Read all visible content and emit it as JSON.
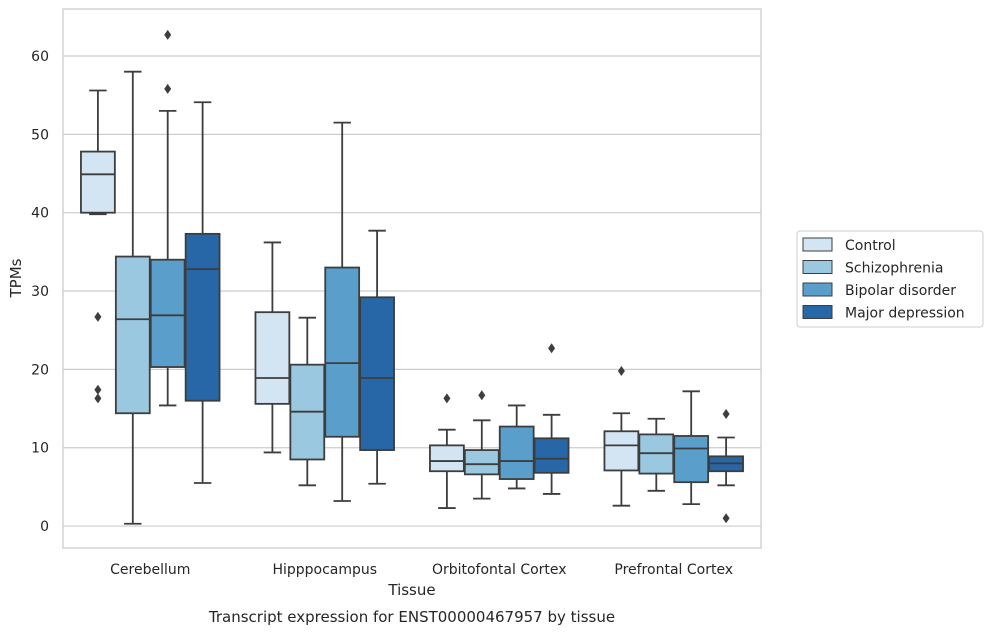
{
  "chart_data": {
    "type": "box",
    "caption": "Transcript expression for ENST00000467957 by tissue",
    "xlabel": "Tissue",
    "ylabel": "TPMs",
    "ylim": [
      -2.8,
      66
    ],
    "yticks": [
      0,
      10,
      20,
      30,
      40,
      50,
      60
    ],
    "grid": "horizontal",
    "legend_position": "right",
    "categories": [
      "Cerebellum",
      "Hipppocampus",
      "Orbitofontal Cortex",
      "Prefrontal Cortex"
    ],
    "series": [
      {
        "name": "Control",
        "color": "#d3e4f3",
        "boxes": [
          {
            "whisker_low": 39.8,
            "q1": 40.0,
            "median": 44.9,
            "q3": 47.8,
            "whisker_high": 55.6,
            "outliers": [
              26.7,
              17.4,
              16.3
            ]
          },
          {
            "whisker_low": 9.4,
            "q1": 15.6,
            "median": 18.9,
            "q3": 27.3,
            "whisker_high": 36.2,
            "outliers": []
          },
          {
            "whisker_low": 2.3,
            "q1": 7.0,
            "median": 8.3,
            "q3": 10.3,
            "whisker_high": 12.3,
            "outliers": [
              16.3
            ]
          },
          {
            "whisker_low": 2.6,
            "q1": 7.1,
            "median": 10.3,
            "q3": 12.1,
            "whisker_high": 14.4,
            "outliers": [
              19.8
            ]
          }
        ]
      },
      {
        "name": "Schizophrenia",
        "color": "#9ac8e0",
        "boxes": [
          {
            "whisker_low": 0.3,
            "q1": 14.4,
            "median": 26.4,
            "q3": 34.4,
            "whisker_high": 58.0,
            "outliers": []
          },
          {
            "whisker_low": 5.2,
            "q1": 8.5,
            "median": 14.6,
            "q3": 20.6,
            "whisker_high": 26.6,
            "outliers": []
          },
          {
            "whisker_low": 3.5,
            "q1": 6.6,
            "median": 7.9,
            "q3": 9.7,
            "whisker_high": 13.5,
            "outliers": [
              16.7
            ]
          },
          {
            "whisker_low": 4.5,
            "q1": 6.7,
            "median": 9.3,
            "q3": 11.7,
            "whisker_high": 13.7,
            "outliers": []
          }
        ]
      },
      {
        "name": "Bipolar disorder",
        "color": "#5a9fcb",
        "boxes": [
          {
            "whisker_low": 15.4,
            "q1": 20.3,
            "median": 26.9,
            "q3": 34.0,
            "whisker_high": 53.0,
            "outliers": [
              62.7,
              55.8
            ]
          },
          {
            "whisker_low": 3.2,
            "q1": 11.4,
            "median": 20.8,
            "q3": 33.0,
            "whisker_high": 51.5,
            "outliers": []
          },
          {
            "whisker_low": 4.8,
            "q1": 6.0,
            "median": 8.3,
            "q3": 12.7,
            "whisker_high": 15.4,
            "outliers": []
          },
          {
            "whisker_low": 2.8,
            "q1": 5.6,
            "median": 9.9,
            "q3": 11.5,
            "whisker_high": 17.2,
            "outliers": []
          }
        ]
      },
      {
        "name": "Major depression",
        "color": "#2767a8",
        "boxes": [
          {
            "whisker_low": 5.5,
            "q1": 16.0,
            "median": 32.8,
            "q3": 37.3,
            "whisker_high": 54.1,
            "outliers": []
          },
          {
            "whisker_low": 5.4,
            "q1": 9.7,
            "median": 18.9,
            "q3": 29.2,
            "whisker_high": 37.7,
            "outliers": []
          },
          {
            "whisker_low": 4.1,
            "q1": 6.8,
            "median": 8.6,
            "q3": 11.2,
            "whisker_high": 14.2,
            "outliers": [
              22.7
            ]
          },
          {
            "whisker_low": 5.2,
            "q1": 7.0,
            "median": 8.0,
            "q3": 8.9,
            "whisker_high": 11.3,
            "outliers": [
              14.3,
              1.0
            ]
          }
        ]
      }
    ]
  }
}
